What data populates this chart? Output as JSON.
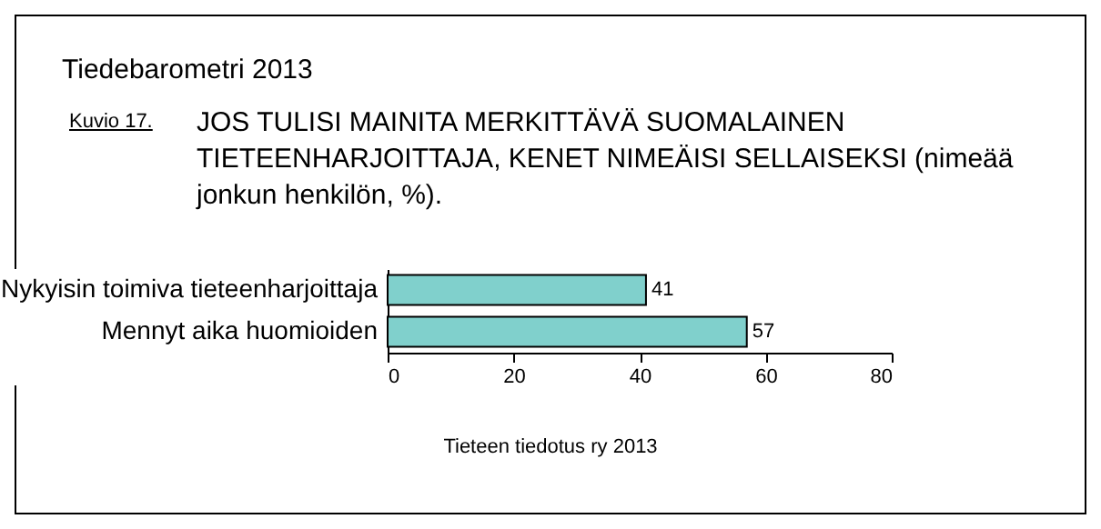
{
  "chart_data": {
    "type": "bar",
    "orientation": "horizontal",
    "title": "Tiedebarometri 2013",
    "subtitle": "JOS TULISI MAINITA MERKITTÄVÄ SUOMALAINEN TIETEENHARJOITTAJA, KENET NIMEÄISI SELLAISEKSI (nimeää jonkun henkilön, %).",
    "annotations": [
      "Kuvio 17.",
      "Tieteen tiedotus ry 2013"
    ],
    "categories": [
      "Nykyisin toimiva tieteenharjoittaja",
      "Mennyt aika huomioiden"
    ],
    "values": [
      41,
      57
    ],
    "color": "#80d0cc",
    "xlim": [
      0,
      80
    ],
    "xticks": [
      0,
      20,
      40,
      60,
      80
    ],
    "grid": false,
    "data_labels": true
  }
}
